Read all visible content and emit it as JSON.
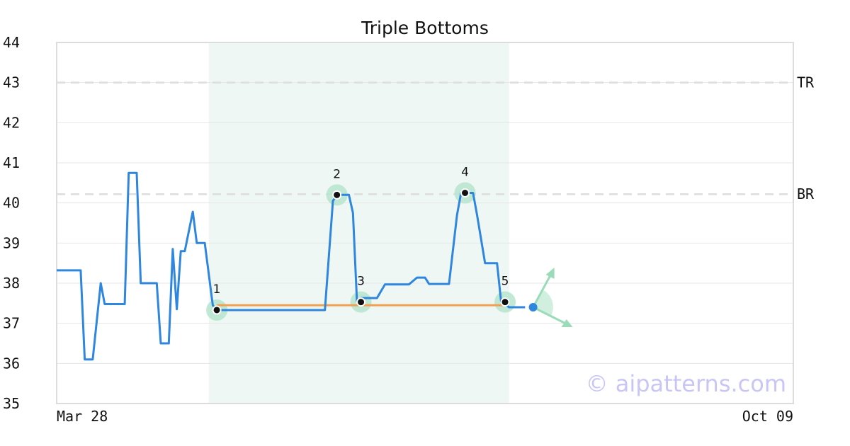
{
  "chart_data": {
    "type": "line",
    "title": "Triple Bottoms",
    "xlabel": "",
    "ylabel": "",
    "x_tick_labels": [
      "Mar 28",
      "Oct 09"
    ],
    "y_ticks": [
      35,
      36,
      37,
      38,
      39,
      40,
      41,
      42,
      43,
      44
    ],
    "ylim": [
      35,
      44
    ],
    "x_range": [
      0,
      184
    ],
    "grid": "horizontal",
    "series": [
      {
        "color": "#2e86de",
        "points": [
          [
            0,
            38.32
          ],
          [
            6,
            38.32
          ],
          [
            7,
            36.1
          ],
          [
            9,
            36.1
          ],
          [
            11,
            38.0
          ],
          [
            12,
            37.48
          ],
          [
            17,
            37.48
          ],
          [
            18,
            40.75
          ],
          [
            20,
            40.75
          ],
          [
            21,
            38.0
          ],
          [
            25,
            38.0
          ],
          [
            26,
            36.5
          ],
          [
            28,
            36.5
          ],
          [
            29,
            38.85
          ],
          [
            30,
            37.35
          ],
          [
            31,
            38.8
          ],
          [
            32,
            38.8
          ],
          [
            34,
            39.78
          ],
          [
            35,
            39.0
          ],
          [
            37,
            39.0
          ],
          [
            39,
            37.45
          ],
          [
            40,
            37.33
          ],
          [
            67,
            37.33
          ],
          [
            69,
            40.05
          ],
          [
            70,
            40.2
          ],
          [
            73,
            40.2
          ],
          [
            74,
            39.75
          ],
          [
            75,
            37.55
          ],
          [
            76,
            37.63
          ],
          [
            80,
            37.63
          ],
          [
            82,
            37.97
          ],
          [
            88,
            37.97
          ],
          [
            90,
            38.14
          ],
          [
            92,
            38.14
          ],
          [
            93,
            37.98
          ],
          [
            98,
            37.98
          ],
          [
            100,
            39.7
          ],
          [
            101,
            40.25
          ],
          [
            104,
            40.25
          ],
          [
            105,
            39.7
          ],
          [
            107,
            38.5
          ],
          [
            110,
            38.5
          ],
          [
            111,
            37.55
          ],
          [
            113,
            37.4
          ],
          [
            117,
            37.4
          ]
        ]
      }
    ],
    "pattern_points": [
      {
        "label": "1",
        "x": 40,
        "y": 37.33
      },
      {
        "label": "2",
        "x": 70,
        "y": 40.2
      },
      {
        "label": "3",
        "x": 76,
        "y": 37.53
      },
      {
        "label": "4",
        "x": 102,
        "y": 40.25
      },
      {
        "label": "5",
        "x": 112,
        "y": 37.53
      }
    ],
    "support_line": {
      "x": [
        40,
        112
      ],
      "y": 37.45,
      "color": "#f0a050"
    },
    "levels": [
      {
        "label": "TR",
        "y": 43.0
      },
      {
        "label": "BR",
        "y": 40.22
      }
    ],
    "highlight_range": [
      38,
      113
    ],
    "current_point": {
      "x": 119,
      "y": 37.4,
      "color": "#2e86de"
    },
    "watermark": "© aipatterns.com",
    "colors": {
      "line": "#2e86de",
      "highlight": "#eef7f3",
      "marker_halo": "#b6e5ce",
      "arrow": "#9adcb9",
      "grid": "#e6e6e6",
      "frame": "#dcdcdc"
    }
  }
}
